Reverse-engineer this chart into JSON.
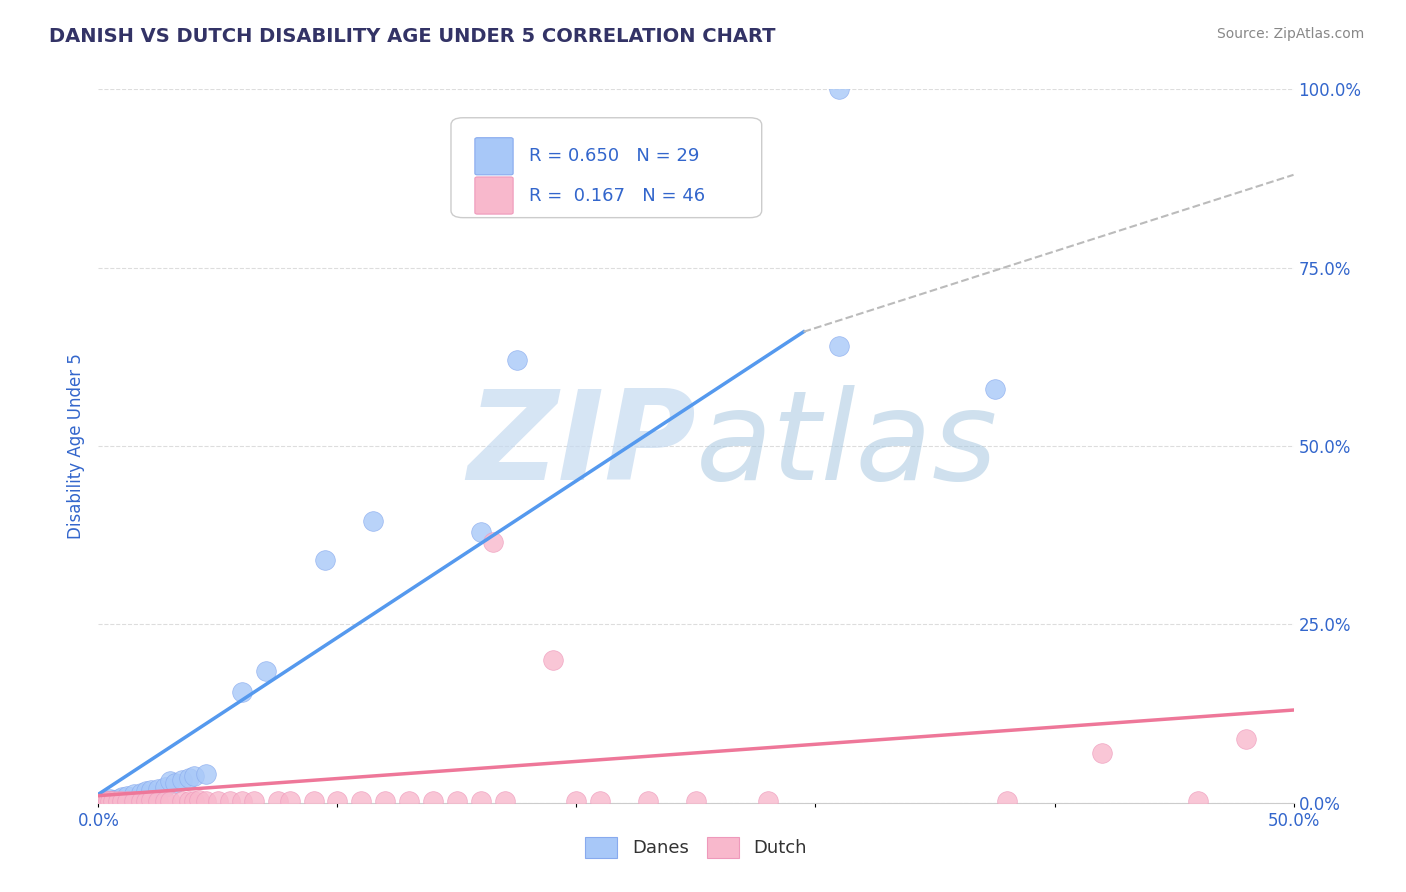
{
  "title": "DANISH VS DUTCH DISABILITY AGE UNDER 5 CORRELATION CHART",
  "source": "Source: ZipAtlas.com",
  "ylabel": "Disability Age Under 5",
  "xlim": [
    0.0,
    0.5
  ],
  "ylim": [
    0.0,
    1.0
  ],
  "xticks": [
    0.0,
    0.1,
    0.2,
    0.3,
    0.4,
    0.5
  ],
  "xtick_labels": [
    "0.0%",
    "",
    "",
    "",
    "",
    "50.0%"
  ],
  "yticks": [
    0.0,
    0.25,
    0.5,
    0.75,
    1.0
  ],
  "ytick_labels": [
    "0.0%",
    "25.0%",
    "50.0%",
    "75.0%",
    "100.0%"
  ],
  "danes_color": "#a8c8f8",
  "dutch_color": "#f8b8cc",
  "danes_line_color": "#5599ee",
  "dutch_line_color": "#ee7799",
  "danes_R": 0.65,
  "danes_N": 29,
  "dutch_R": 0.167,
  "dutch_N": 46,
  "legend_R_color": "#3366cc",
  "danes_scatter": [
    [
      0.002,
      0.002
    ],
    [
      0.003,
      0.003
    ],
    [
      0.004,
      0.003
    ],
    [
      0.005,
      0.005
    ],
    [
      0.006,
      0.004
    ],
    [
      0.008,
      0.006
    ],
    [
      0.01,
      0.008
    ],
    [
      0.012,
      0.01
    ],
    [
      0.015,
      0.012
    ],
    [
      0.018,
      0.014
    ],
    [
      0.02,
      0.016
    ],
    [
      0.022,
      0.018
    ],
    [
      0.025,
      0.02
    ],
    [
      0.028,
      0.022
    ],
    [
      0.03,
      0.03
    ],
    [
      0.032,
      0.028
    ],
    [
      0.035,
      0.032
    ],
    [
      0.038,
      0.035
    ],
    [
      0.04,
      0.038
    ],
    [
      0.045,
      0.04
    ],
    [
      0.06,
      0.155
    ],
    [
      0.07,
      0.185
    ],
    [
      0.095,
      0.34
    ],
    [
      0.115,
      0.395
    ],
    [
      0.16,
      0.38
    ],
    [
      0.175,
      0.62
    ],
    [
      0.31,
      1.0
    ],
    [
      0.31,
      0.64
    ],
    [
      0.375,
      0.58
    ]
  ],
  "dutch_scatter": [
    [
      0.002,
      0.002
    ],
    [
      0.003,
      0.003
    ],
    [
      0.004,
      0.002
    ],
    [
      0.005,
      0.003
    ],
    [
      0.006,
      0.002
    ],
    [
      0.008,
      0.003
    ],
    [
      0.01,
      0.003
    ],
    [
      0.012,
      0.003
    ],
    [
      0.015,
      0.003
    ],
    [
      0.018,
      0.003
    ],
    [
      0.02,
      0.003
    ],
    [
      0.022,
      0.004
    ],
    [
      0.025,
      0.003
    ],
    [
      0.028,
      0.003
    ],
    [
      0.03,
      0.003
    ],
    [
      0.035,
      0.003
    ],
    [
      0.038,
      0.003
    ],
    [
      0.04,
      0.003
    ],
    [
      0.042,
      0.004
    ],
    [
      0.045,
      0.003
    ],
    [
      0.05,
      0.003
    ],
    [
      0.055,
      0.003
    ],
    [
      0.06,
      0.003
    ],
    [
      0.065,
      0.003
    ],
    [
      0.075,
      0.003
    ],
    [
      0.08,
      0.003
    ],
    [
      0.09,
      0.003
    ],
    [
      0.1,
      0.003
    ],
    [
      0.11,
      0.003
    ],
    [
      0.12,
      0.003
    ],
    [
      0.13,
      0.003
    ],
    [
      0.14,
      0.003
    ],
    [
      0.15,
      0.003
    ],
    [
      0.16,
      0.003
    ],
    [
      0.17,
      0.003
    ],
    [
      0.19,
      0.2
    ],
    [
      0.2,
      0.003
    ],
    [
      0.21,
      0.003
    ],
    [
      0.23,
      0.003
    ],
    [
      0.25,
      0.003
    ],
    [
      0.28,
      0.003
    ],
    [
      0.165,
      0.365
    ],
    [
      0.38,
      0.003
    ],
    [
      0.42,
      0.07
    ],
    [
      0.46,
      0.003
    ],
    [
      0.48,
      0.09
    ]
  ],
  "danes_line_x": [
    0.0,
    0.295
  ],
  "danes_line_y": [
    0.012,
    0.66
  ],
  "dutch_line_x": [
    0.0,
    0.5
  ],
  "dutch_line_y": [
    0.01,
    0.13
  ],
  "dash_line_x": [
    0.295,
    0.5
  ],
  "dash_line_y": [
    0.66,
    0.88
  ],
  "title_color": "#333366",
  "tick_label_color": "#3366cc",
  "background_color": "#ffffff",
  "grid_color": "#dddddd"
}
